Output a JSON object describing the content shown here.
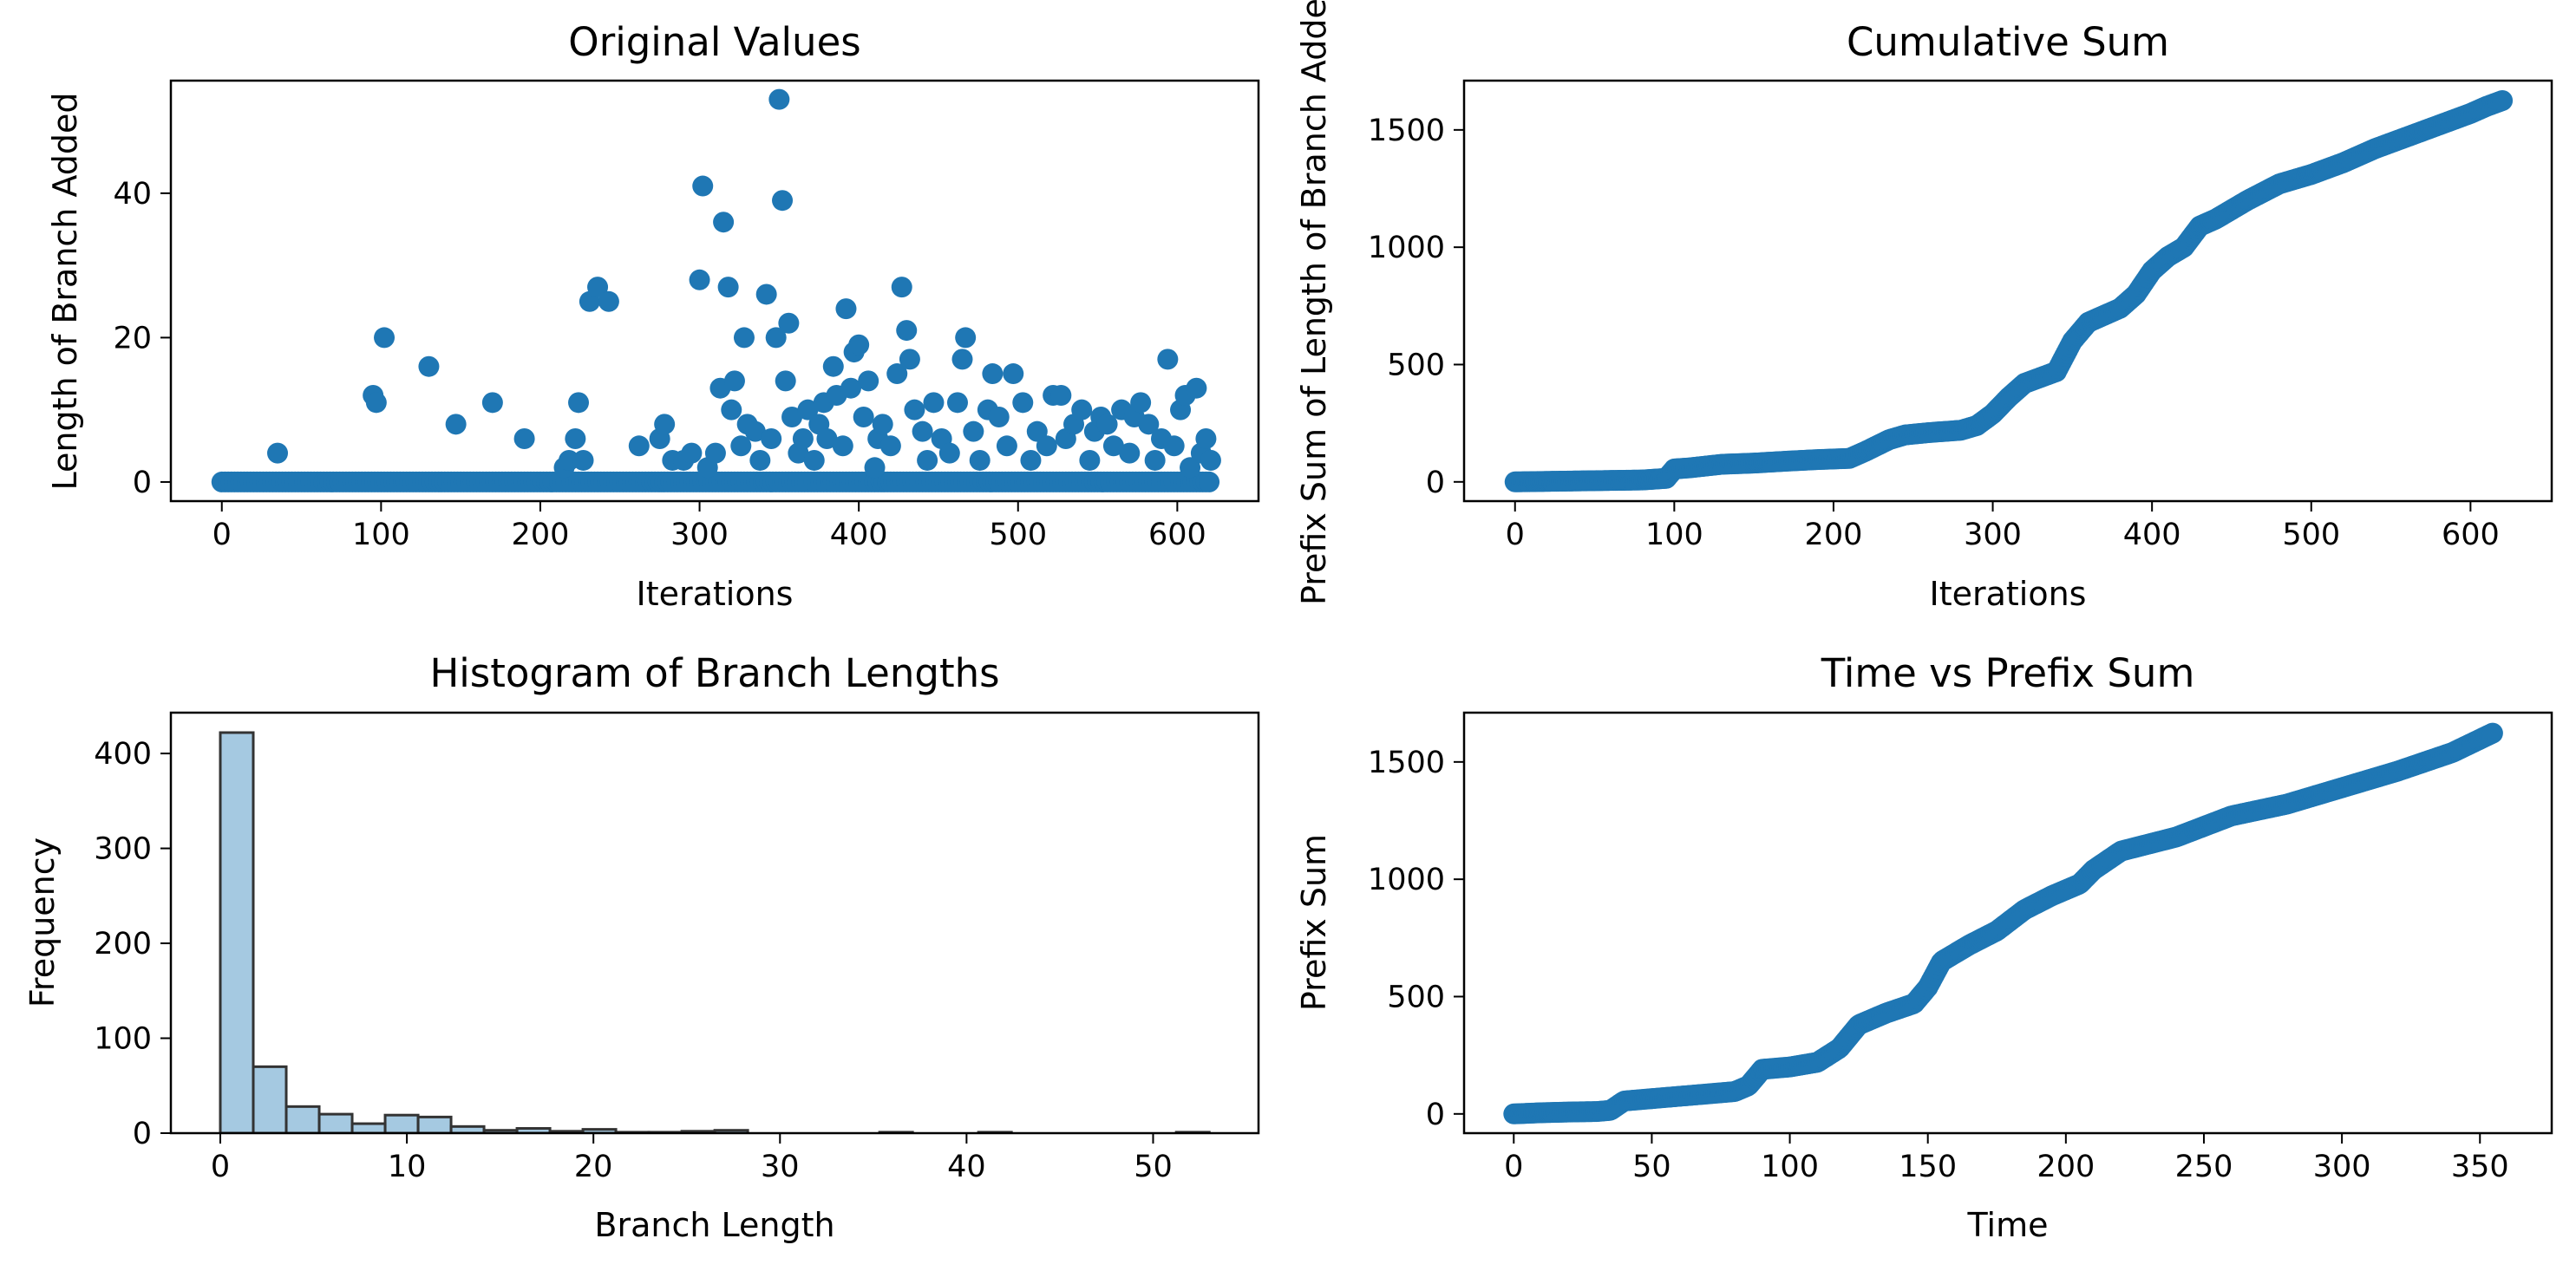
{
  "figure": {
    "background": "#ffffff"
  },
  "colors": {
    "series": "#1f77b4",
    "hist_fill": "#1f77b4",
    "hist_fill_opacity": 0.4,
    "hist_edge": "#333333",
    "axis": "#000000"
  },
  "chart_data": [
    {
      "id": "original",
      "type": "scatter",
      "title": "Original Values",
      "xlabel": "Iterations",
      "ylabel": "Length of Branch Added",
      "xlim": [
        -32,
        651
      ],
      "ylim": [
        -2.65,
        55.6
      ],
      "xticks": [
        0,
        100,
        200,
        300,
        400,
        500,
        600
      ],
      "yticks": [
        0,
        20,
        40
      ],
      "grid": false,
      "legend": "none",
      "points": [
        [
          35,
          4
        ],
        [
          95,
          12
        ],
        [
          97,
          11
        ],
        [
          102,
          20
        ],
        [
          130,
          16
        ],
        [
          147,
          8
        ],
        [
          170,
          11
        ],
        [
          190,
          6
        ],
        [
          215,
          2
        ],
        [
          218,
          3
        ],
        [
          222,
          6
        ],
        [
          224,
          11
        ],
        [
          227,
          3
        ],
        [
          231,
          25
        ],
        [
          236,
          27
        ],
        [
          243,
          25
        ],
        [
          262,
          5
        ],
        [
          275,
          6
        ],
        [
          278,
          8
        ],
        [
          283,
          3
        ],
        [
          290,
          3
        ],
        [
          295,
          4
        ],
        [
          300,
          28
        ],
        [
          302,
          41
        ],
        [
          305,
          2
        ],
        [
          310,
          4
        ],
        [
          313,
          13
        ],
        [
          315,
          36
        ],
        [
          318,
          27
        ],
        [
          320,
          10
        ],
        [
          322,
          14
        ],
        [
          326,
          5
        ],
        [
          328,
          20
        ],
        [
          330,
          8
        ],
        [
          335,
          7
        ],
        [
          338,
          3
        ],
        [
          342,
          26
        ],
        [
          345,
          6
        ],
        [
          348,
          20
        ],
        [
          350,
          53
        ],
        [
          352,
          39
        ],
        [
          354,
          14
        ],
        [
          356,
          22
        ],
        [
          358,
          9
        ],
        [
          362,
          4
        ],
        [
          365,
          6
        ],
        [
          368,
          10
        ],
        [
          372,
          3
        ],
        [
          375,
          8
        ],
        [
          378,
          11
        ],
        [
          380,
          6
        ],
        [
          384,
          16
        ],
        [
          386,
          12
        ],
        [
          390,
          5
        ],
        [
          392,
          24
        ],
        [
          395,
          13
        ],
        [
          397,
          18
        ],
        [
          400,
          19
        ],
        [
          403,
          9
        ],
        [
          406,
          14
        ],
        [
          410,
          2
        ],
        [
          412,
          6
        ],
        [
          415,
          8
        ],
        [
          420,
          5
        ],
        [
          424,
          15
        ],
        [
          427,
          27
        ],
        [
          430,
          21
        ],
        [
          432,
          17
        ],
        [
          435,
          10
        ],
        [
          440,
          7
        ],
        [
          443,
          3
        ],
        [
          447,
          11
        ],
        [
          452,
          6
        ],
        [
          457,
          4
        ],
        [
          462,
          11
        ],
        [
          465,
          17
        ],
        [
          467,
          20
        ],
        [
          472,
          7
        ],
        [
          476,
          3
        ],
        [
          481,
          10
        ],
        [
          484,
          15
        ],
        [
          488,
          9
        ],
        [
          493,
          5
        ],
        [
          497,
          15
        ],
        [
          503,
          11
        ],
        [
          508,
          3
        ],
        [
          512,
          7
        ],
        [
          518,
          5
        ],
        [
          522,
          12
        ],
        [
          527,
          12
        ],
        [
          530,
          6
        ],
        [
          535,
          8
        ],
        [
          540,
          10
        ],
        [
          545,
          3
        ],
        [
          548,
          7
        ],
        [
          552,
          9
        ],
        [
          556,
          8
        ],
        [
          560,
          5
        ],
        [
          565,
          10
        ],
        [
          570,
          4
        ],
        [
          573,
          9
        ],
        [
          577,
          11
        ],
        [
          582,
          8
        ],
        [
          586,
          3
        ],
        [
          590,
          6
        ],
        [
          594,
          17
        ],
        [
          598,
          5
        ],
        [
          602,
          10
        ],
        [
          605,
          12
        ],
        [
          608,
          2
        ],
        [
          612,
          13
        ],
        [
          615,
          4
        ],
        [
          618,
          6
        ],
        [
          621,
          3
        ]
      ],
      "zero_range": [
        0,
        620
      ]
    },
    {
      "id": "cumulative",
      "type": "scatter",
      "title": "Cumulative Sum",
      "xlabel": "Iterations",
      "ylabel": "Prefix Sum of Length of Branch Added",
      "xlim": [
        -32,
        651
      ],
      "ylim": [
        -82,
        1710
      ],
      "xticks": [
        0,
        100,
        200,
        300,
        400,
        500,
        600
      ],
      "yticks": [
        0,
        500,
        1000,
        1500
      ],
      "grid": false,
      "legend": "none",
      "x": [
        0,
        20,
        40,
        60,
        80,
        95,
        100,
        110,
        130,
        150,
        170,
        190,
        210,
        220,
        235,
        245,
        260,
        280,
        290,
        300,
        310,
        320,
        340,
        350,
        360,
        380,
        390,
        400,
        410,
        420,
        430,
        440,
        460,
        480,
        500,
        520,
        540,
        560,
        580,
        600,
        610,
        620
      ],
      "y": [
        0,
        2,
        4,
        6,
        8,
        15,
        55,
        60,
        75,
        80,
        88,
        95,
        100,
        130,
        180,
        200,
        210,
        220,
        240,
        290,
        360,
        420,
        470,
        600,
        680,
        740,
        800,
        900,
        960,
        1000,
        1090,
        1120,
        1200,
        1270,
        1310,
        1360,
        1420,
        1470,
        1520,
        1570,
        1600,
        1625
      ]
    },
    {
      "id": "histogram",
      "type": "bar",
      "title": "Histogram of Branch Lengths",
      "xlabel": "Branch Length",
      "ylabel": "Frequency",
      "xlim": [
        -2.65,
        55.65
      ],
      "ylim": [
        0,
        443
      ],
      "xticks": [
        0,
        10,
        20,
        30,
        40,
        50
      ],
      "yticks": [
        0,
        100,
        200,
        300,
        400
      ],
      "grid": false,
      "legend": "none",
      "bin_start": 0,
      "bin_width": 1.767,
      "values": [
        422,
        70,
        28,
        20,
        10,
        19,
        17,
        7,
        3,
        5,
        2,
        4,
        1,
        1,
        2,
        3,
        0,
        0,
        0,
        0,
        1,
        0,
        0,
        1,
        0,
        0,
        0,
        0,
        0,
        1
      ]
    },
    {
      "id": "time",
      "type": "scatter",
      "title": "Time vs Prefix Sum",
      "xlabel": "Time",
      "ylabel": "Prefix Sum",
      "xlim": [
        -18,
        376
      ],
      "ylim": [
        -82,
        1710
      ],
      "xticks": [
        0,
        50,
        100,
        150,
        200,
        250,
        300,
        350
      ],
      "yticks": [
        0,
        500,
        1000,
        1500
      ],
      "grid": false,
      "legend": "none",
      "x": [
        0,
        10,
        20,
        30,
        35,
        40,
        50,
        60,
        70,
        80,
        85,
        90,
        100,
        110,
        118,
        125,
        135,
        145,
        150,
        155,
        165,
        175,
        185,
        195,
        205,
        210,
        220,
        240,
        260,
        280,
        300,
        320,
        340,
        355
      ],
      "y": [
        0,
        5,
        8,
        10,
        15,
        55,
        65,
        75,
        85,
        95,
        120,
        190,
        200,
        220,
        280,
        380,
        430,
        470,
        540,
        650,
        720,
        780,
        870,
        930,
        980,
        1040,
        1120,
        1180,
        1270,
        1320,
        1390,
        1460,
        1540,
        1625
      ]
    }
  ]
}
